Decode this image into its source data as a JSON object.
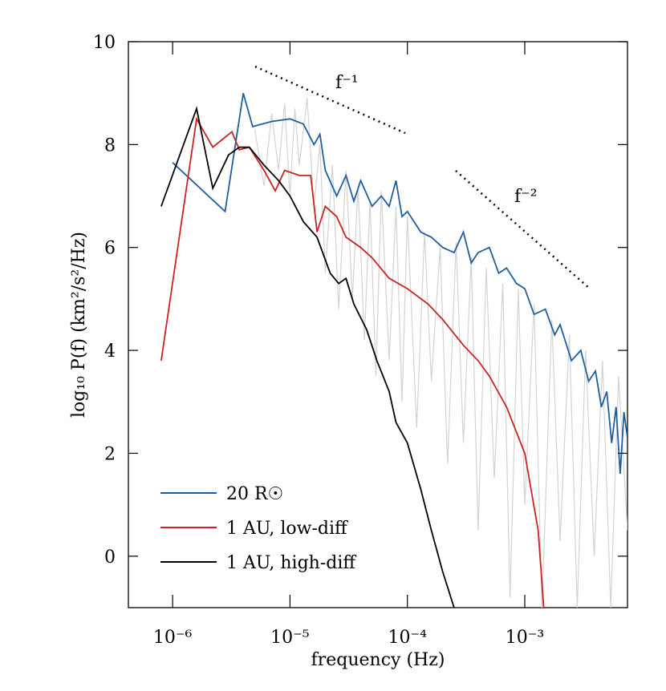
{
  "chart_data": {
    "type": "line",
    "x_label": "frequency (Hz)",
    "y_label": "log₁₀ P(f)  (km²/s²/Hz)",
    "annotations": [
      "f⁻¹",
      "f⁻²"
    ],
    "log_x": true,
    "legend": "lower left",
    "xlim": [
      4.2e-07,
      0.0075
    ],
    "ylim": [
      -1,
      10
    ],
    "xticks": [
      {
        "value": 1e-06,
        "label": "10⁻⁶"
      },
      {
        "value": 1e-05,
        "label": "10⁻⁵"
      },
      {
        "value": 0.0001,
        "label": "10⁻⁴"
      },
      {
        "value": 0.001,
        "label": "10⁻³"
      }
    ],
    "yticks": [
      0,
      2,
      4,
      6,
      8,
      10
    ],
    "series": [
      {
        "color": "#d3d3d3",
        "x": [
          5e-06,
          6e-06,
          7e-06,
          8e-06,
          9e-06,
          1e-05,
          1.1e-05,
          1.2e-05,
          1.4e-05,
          1.6e-05,
          1.8e-05,
          2e-05,
          2.3e-05,
          2.6e-05,
          3e-05,
          3.4e-05,
          3.8e-05,
          4.3e-05,
          4.8e-05,
          5.4e-05,
          6e-05,
          7e-05,
          8e-05,
          9e-05,
          0.0001,
          0.00012,
          0.00014,
          0.00016,
          0.00019,
          0.00022,
          0.00026,
          0.0003,
          0.00035,
          0.0004,
          0.00047,
          0.00055,
          0.00065,
          0.00075,
          0.00088,
          0.001,
          0.0012,
          0.0014,
          0.0017,
          0.002,
          0.0024,
          0.0028,
          0.0033,
          0.0039,
          0.0046,
          0.0054,
          0.0063,
          0.0075
        ],
        "values": [
          8.3,
          7.2,
          8.6,
          7.5,
          8.8,
          7.0,
          8.7,
          7.6,
          8.9,
          6.8,
          8.0,
          5.5,
          7.6,
          4.8,
          7.5,
          5.0,
          7.2,
          4.2,
          6.9,
          3.5,
          7.1,
          3.8,
          6.8,
          3.0,
          6.6,
          2.5,
          6.3,
          3.4,
          6.0,
          1.8,
          6.1,
          2.2,
          5.8,
          0.5,
          5.6,
          1.5,
          5.3,
          -0.8,
          5.2,
          1.0,
          4.9,
          -1.0,
          4.6,
          0.3,
          4.3,
          -1.0,
          4.0,
          0.0,
          3.8,
          -1.0,
          3.5,
          0.5
        ]
      },
      {
        "name": "20 R☉",
        "color": "#1f5fa0",
        "x": [
          1e-06,
          2.8e-06,
          4e-06,
          4.8e-06,
          7e-06,
          1e-05,
          1.3e-05,
          1.6e-05,
          1.8e-05,
          2e-05,
          2.5e-05,
          3e-05,
          3.5e-05,
          4e-05,
          5e-05,
          6e-05,
          7e-05,
          8e-05,
          9e-05,
          0.0001,
          0.00013,
          0.00016,
          0.0002,
          0.00025,
          0.0003,
          0.00035,
          0.0004,
          0.0005,
          0.0006,
          0.0007,
          0.00085,
          0.001,
          0.0012,
          0.0015,
          0.0018,
          0.002,
          0.0025,
          0.003,
          0.0035,
          0.004,
          0.0045,
          0.005,
          0.0055,
          0.006,
          0.0065,
          0.007,
          0.0075
        ],
        "values": [
          7.65,
          6.7,
          9.0,
          8.35,
          8.45,
          8.5,
          8.4,
          8.0,
          8.2,
          7.5,
          7.0,
          7.4,
          6.9,
          7.3,
          6.8,
          7.0,
          6.8,
          7.3,
          6.6,
          6.7,
          6.3,
          6.2,
          6.0,
          5.9,
          6.3,
          5.7,
          5.9,
          6.0,
          5.5,
          5.6,
          5.3,
          5.2,
          4.7,
          4.8,
          4.3,
          4.5,
          3.8,
          4.0,
          3.4,
          3.6,
          2.9,
          3.2,
          2.2,
          2.9,
          1.6,
          2.8,
          2.3
        ]
      },
      {
        "name": "1 AU, low-diff",
        "color": "#cc2222",
        "x": [
          8e-07,
          1.6e-06,
          2.2e-06,
          3.2e-06,
          3.7e-06,
          4.5e-06,
          6e-06,
          7.5e-06,
          9e-06,
          1.2e-05,
          1.5e-05,
          1.7e-05,
          2e-05,
          2.5e-05,
          3e-05,
          4e-05,
          5e-05,
          7e-05,
          0.0001,
          0.00015,
          0.0002,
          0.0003,
          0.0004,
          0.0005,
          0.0007,
          0.001,
          0.0013,
          0.00145
        ],
        "values": [
          3.8,
          8.5,
          7.95,
          8.25,
          7.9,
          7.95,
          7.5,
          7.1,
          7.5,
          7.4,
          7.4,
          6.3,
          6.8,
          6.6,
          6.2,
          6.0,
          5.8,
          5.4,
          5.2,
          4.9,
          4.6,
          4.1,
          3.8,
          3.5,
          2.9,
          2.0,
          0.5,
          -1
        ]
      },
      {
        "name": "1 AU, high-diff",
        "color": "#000000",
        "x": [
          8e-07,
          1.6e-06,
          2.2e-06,
          3e-06,
          3.7e-06,
          4.5e-06,
          6e-06,
          8e-06,
          1e-05,
          1.3e-05,
          1.7e-05,
          2.2e-05,
          2.6e-05,
          3e-05,
          3.5e-05,
          4.5e-05,
          5.5e-05,
          7e-05,
          8e-05,
          0.0001,
          0.00013,
          0.00016,
          0.0002,
          0.00025
        ],
        "values": [
          6.8,
          8.7,
          7.15,
          7.8,
          7.95,
          7.95,
          7.6,
          7.3,
          7.0,
          6.5,
          6.2,
          5.5,
          5.3,
          5.4,
          4.9,
          4.4,
          3.8,
          3.2,
          2.6,
          2.2,
          1.3,
          0.5,
          -0.3,
          -1
        ]
      }
    ]
  }
}
